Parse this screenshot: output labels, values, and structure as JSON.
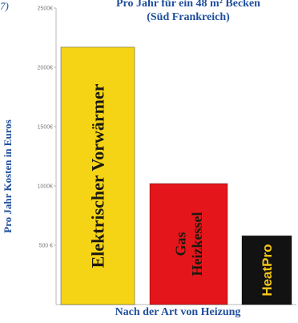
{
  "corner_mark": "7)",
  "chart_data": {
    "type": "bar",
    "title_line1": "Pro Jahr für ein  48 m² Becken",
    "title_line2": "(Süd Frankreich)",
    "xlabel": "Nach der Art von Heizung",
    "ylabel": "Pro Jahr Kosten in Euros",
    "ylim": [
      0,
      2500
    ],
    "yticks": [
      {
        "value": 500,
        "label": "500 €"
      },
      {
        "value": 1000,
        "label": "1000€"
      },
      {
        "value": 1500,
        "label": "1500€"
      },
      {
        "value": 2000,
        "label": "2000€"
      },
      {
        "value": 2500,
        "label": "2500€"
      }
    ],
    "grid": false,
    "categories": [
      "Elektrischer Vorwärmer",
      "Gas Heizkessel",
      "HeatPro"
    ],
    "category_lines": [
      [
        "Elektrischer Vorwärmer"
      ],
      [
        "Gas",
        "Heizkessel"
      ],
      [
        "HeatPro"
      ]
    ],
    "values": [
      2170,
      1020,
      580
    ],
    "colors": [
      "#f5d416",
      "#e4161b",
      "#121212"
    ],
    "label_colors": [
      "#1c1a10",
      "#1c1a10",
      "#f5c518"
    ]
  }
}
